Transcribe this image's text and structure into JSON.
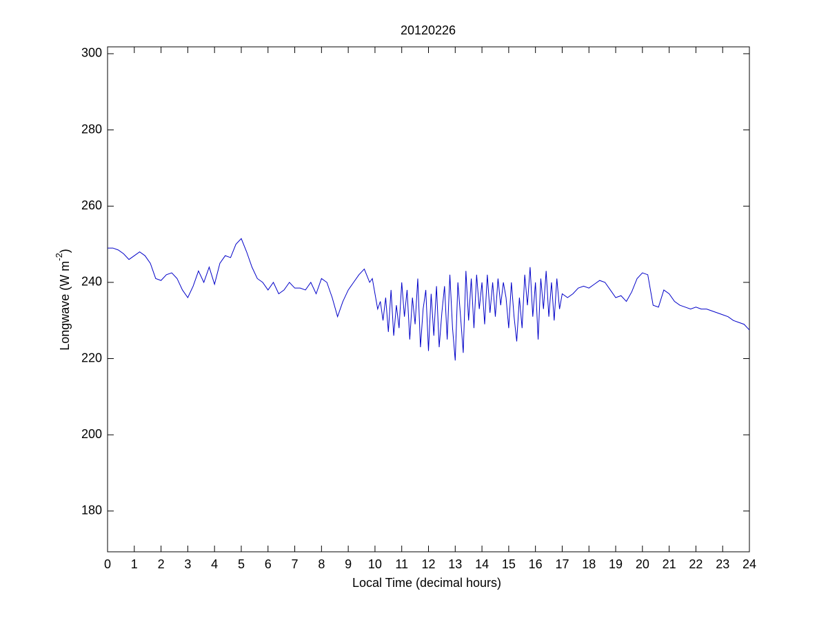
{
  "chart_data": {
    "type": "line",
    "title": "20120226",
    "xlabel": "Local Time (decimal hours)",
    "ylabel": {
      "text": "Longwave (W m",
      "superscript": "-2",
      "suffix": ")"
    },
    "xlim": [
      0,
      24
    ],
    "xticks": [
      0,
      1,
      2,
      3,
      4,
      5,
      6,
      7,
      8,
      9,
      10,
      11,
      12,
      13,
      14,
      15,
      16,
      17,
      18,
      19,
      20,
      21,
      22,
      23,
      24
    ],
    "ylim": [
      169.3,
      301.8
    ],
    "yticks": [
      180,
      200,
      220,
      240,
      260,
      280,
      300
    ],
    "grid": false,
    "x": [
      0,
      0.2,
      0.4,
      0.6,
      0.8,
      1.0,
      1.2,
      1.4,
      1.6,
      1.8,
      2.0,
      2.2,
      2.4,
      2.6,
      2.8,
      3.0,
      3.2,
      3.4,
      3.6,
      3.8,
      4.0,
      4.2,
      4.4,
      4.6,
      4.8,
      5.0,
      5.2,
      5.4,
      5.6,
      5.8,
      6.0,
      6.2,
      6.4,
      6.6,
      6.8,
      7.0,
      7.2,
      7.4,
      7.6,
      7.8,
      8.0,
      8.2,
      8.4,
      8.6,
      8.8,
      9.0,
      9.2,
      9.4,
      9.6,
      9.8,
      9.9,
      10.0,
      10.1,
      10.2,
      10.3,
      10.4,
      10.5,
      10.6,
      10.7,
      10.8,
      10.9,
      11.0,
      11.1,
      11.2,
      11.3,
      11.4,
      11.5,
      11.6,
      11.7,
      11.8,
      11.9,
      12.0,
      12.1,
      12.2,
      12.3,
      12.4,
      12.5,
      12.6,
      12.7,
      12.8,
      12.9,
      13.0,
      13.1,
      13.2,
      13.3,
      13.4,
      13.5,
      13.6,
      13.7,
      13.8,
      13.9,
      14.0,
      14.1,
      14.2,
      14.3,
      14.4,
      14.5,
      14.6,
      14.7,
      14.8,
      14.9,
      15.0,
      15.1,
      15.2,
      15.3,
      15.4,
      15.5,
      15.6,
      15.7,
      15.8,
      15.9,
      16.0,
      16.1,
      16.2,
      16.3,
      16.4,
      16.5,
      16.6,
      16.7,
      16.8,
      16.9,
      17.0,
      17.2,
      17.4,
      17.6,
      17.8,
      18.0,
      18.2,
      18.4,
      18.6,
      18.8,
      19.0,
      19.2,
      19.4,
      19.6,
      19.8,
      20.0,
      20.2,
      20.4,
      20.6,
      20.8,
      21.0,
      21.2,
      21.4,
      21.6,
      21.8,
      22.0,
      22.2,
      22.4,
      22.6,
      22.8,
      23.0,
      23.2,
      23.4,
      23.6,
      23.8,
      24.0
    ],
    "series": [
      {
        "color": "#0000c8",
        "values": [
          249,
          249,
          248.5,
          247.5,
          246,
          247,
          248,
          247,
          245,
          241,
          240.5,
          242,
          242.5,
          241,
          238,
          236,
          239,
          243,
          240,
          244,
          239.5,
          245,
          247,
          246.5,
          250,
          251.5,
          248,
          244,
          241,
          240,
          238,
          240,
          237,
          238,
          240,
          238.5,
          238.5,
          238,
          240,
          237,
          241,
          240,
          236,
          231,
          235,
          238,
          240,
          242,
          243.5,
          240,
          241,
          237,
          233,
          235,
          230,
          236,
          227,
          238,
          226,
          234,
          228,
          240,
          231,
          238,
          225,
          236,
          229,
          241,
          223,
          233,
          238,
          222,
          237,
          226,
          239,
          223,
          232,
          239,
          225,
          242,
          228,
          219.5,
          240,
          231,
          221.5,
          243,
          230,
          241,
          228,
          242,
          233,
          240,
          229,
          242,
          232,
          240,
          231,
          241,
          234,
          240,
          236,
          228,
          240,
          231,
          224.5,
          236,
          228,
          242,
          234,
          244,
          231,
          240,
          225,
          241,
          233,
          243,
          231,
          240,
          230,
          241,
          233,
          237,
          236,
          237,
          238.5,
          239,
          238.5,
          239.5,
          240.5,
          240,
          238,
          236,
          236.5,
          235,
          237.5,
          241,
          242.5,
          242,
          234,
          233.5,
          238,
          237,
          235,
          234,
          233.5,
          233,
          233.5,
          233,
          233,
          232.5,
          232,
          231.5,
          231,
          230,
          229.5,
          229,
          227.5
        ]
      }
    ]
  }
}
